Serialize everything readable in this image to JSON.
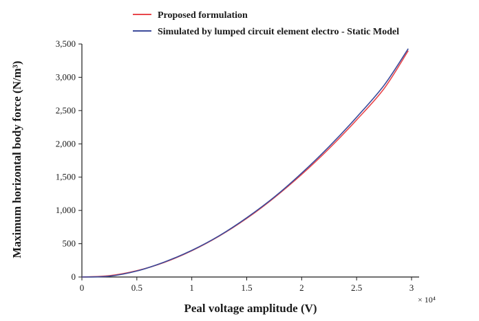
{
  "chart_data": {
    "type": "line",
    "xlabel": "Peal voltage amplitude (V)",
    "ylabel": "Maximum horizontal body force (N/m³)",
    "x_multiplier_label": "× 10⁴",
    "xlim": [
      0,
      3
    ],
    "ylim": [
      0,
      3500
    ],
    "x_tick_values": [
      0,
      0.5,
      1,
      1.5,
      2,
      2.5,
      3
    ],
    "x_tick_labels": [
      "0",
      "0.5",
      "1",
      "1.5",
      "2",
      "2.5",
      "3"
    ],
    "y_tick_values": [
      0,
      500,
      1000,
      1500,
      2000,
      2500,
      3000,
      3500
    ],
    "y_tick_labels": [
      "0",
      "500",
      "1,000",
      "1,500",
      "2,000",
      "2,500",
      "3,000",
      "3,500"
    ],
    "grid": false,
    "legend_position": "top",
    "x": [
      0,
      0.25,
      0.5,
      0.75,
      1.0,
      1.25,
      1.5,
      1.75,
      2.0,
      2.25,
      2.5,
      2.75,
      2.97
    ],
    "series": [
      {
        "name": "Proposed formulation",
        "color": "#e8474c",
        "values": [
          0,
          20,
          95,
          220,
          395,
          615,
          880,
          1190,
          1540,
          1930,
          2360,
          2830,
          3400
        ]
      },
      {
        "name": "Simulated by lumped circuit element electro - Static Model",
        "color": "#3b4a9a",
        "values": [
          0,
          12,
          90,
          225,
          400,
          620,
          890,
          1200,
          1560,
          1960,
          2400,
          2880,
          3430
        ]
      }
    ]
  }
}
